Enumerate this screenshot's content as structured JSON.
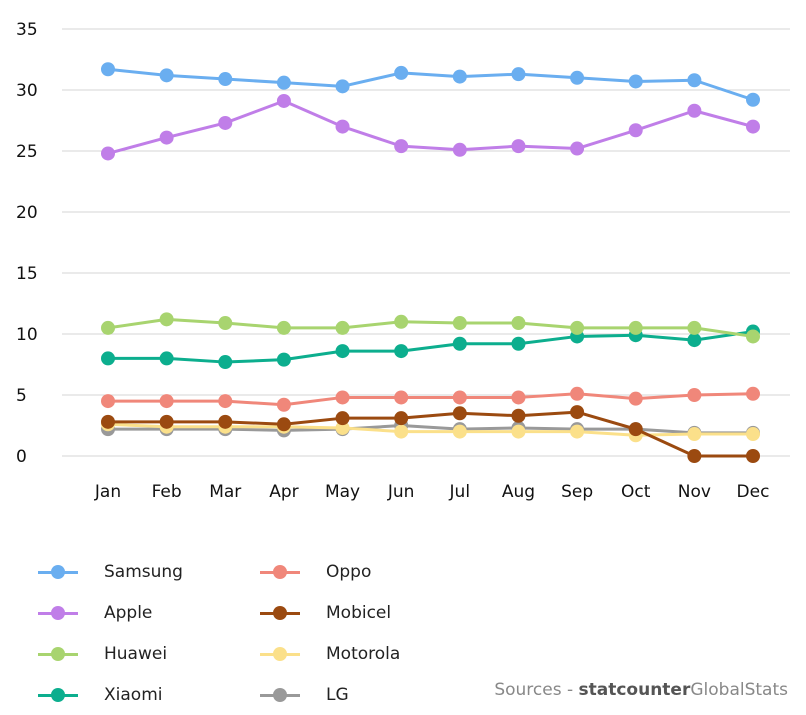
{
  "chart_data": {
    "type": "line",
    "categories": [
      "Jan",
      "Feb",
      "Mar",
      "Apr",
      "May",
      "Jun",
      "Jul",
      "Aug",
      "Sep",
      "Oct",
      "Nov",
      "Dec"
    ],
    "ylim": [
      0,
      35
    ],
    "yticks": [
      0,
      5,
      10,
      15,
      20,
      25,
      30,
      35
    ],
    "grid": "horizontal",
    "legend_position": "bottom-left",
    "series": [
      {
        "name": "Samsung",
        "color": "#6aaef0",
        "values": [
          31.7,
          31.2,
          30.9,
          30.6,
          30.3,
          31.4,
          31.1,
          31.3,
          31.0,
          30.7,
          30.8,
          29.2
        ]
      },
      {
        "name": "Apple",
        "color": "#c07ee8",
        "values": [
          24.8,
          26.1,
          27.3,
          29.1,
          27.0,
          25.4,
          25.1,
          25.4,
          25.2,
          26.7,
          28.3,
          27.0
        ]
      },
      {
        "name": "Huawei",
        "color": "#a8d46f",
        "values": [
          10.5,
          11.2,
          10.9,
          10.5,
          10.5,
          11.0,
          10.9,
          10.9,
          10.5,
          10.5,
          10.5,
          9.8
        ]
      },
      {
        "name": "Xiaomi",
        "color": "#0cae8e",
        "values": [
          8.0,
          8.0,
          7.7,
          7.9,
          8.6,
          8.6,
          9.2,
          9.2,
          9.8,
          9.9,
          9.5,
          10.2
        ]
      },
      {
        "name": "Oppo",
        "color": "#f0877a",
        "values": [
          4.5,
          4.5,
          4.5,
          4.2,
          4.8,
          4.8,
          4.8,
          4.8,
          5.1,
          4.7,
          5.0,
          5.1
        ]
      },
      {
        "name": "Mobicel",
        "color": "#9b4a10",
        "values": [
          2.8,
          2.8,
          2.8,
          2.6,
          3.1,
          3.1,
          3.5,
          3.3,
          3.6,
          2.2,
          0.0,
          0.0
        ]
      },
      {
        "name": "Motorola",
        "color": "#fbe08a",
        "values": [
          2.6,
          2.4,
          2.4,
          2.4,
          2.3,
          2.0,
          2.0,
          2.0,
          2.0,
          1.7,
          1.8,
          1.8
        ]
      },
      {
        "name": "LG",
        "color": "#999999",
        "values": [
          2.2,
          2.2,
          2.2,
          2.1,
          2.2,
          2.5,
          2.2,
          2.3,
          2.2,
          2.2,
          1.9,
          1.9
        ]
      }
    ]
  },
  "source": {
    "prefix": "Sources - ",
    "brand": "statcounter",
    "suffix": "GlobalStats"
  }
}
